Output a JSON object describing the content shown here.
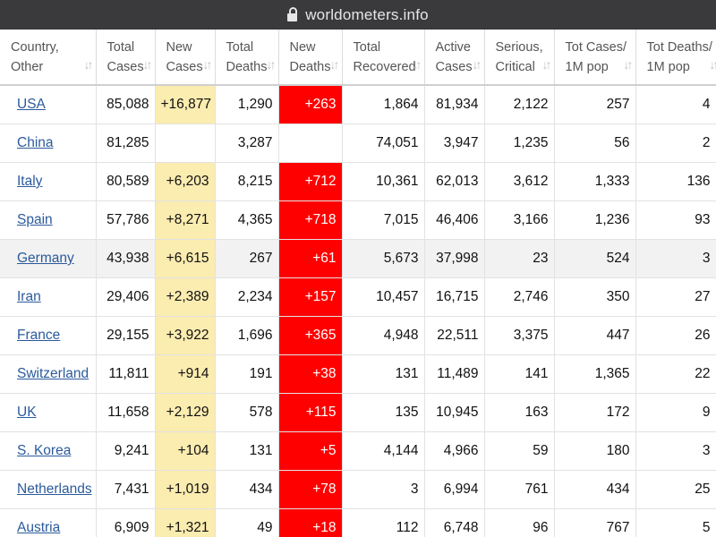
{
  "browser": {
    "url": "worldometers.info"
  },
  "table": {
    "headers": [
      {
        "line1": "Country,",
        "line2": "Other"
      },
      {
        "line1": "Total",
        "line2": "Cases"
      },
      {
        "line1": "New",
        "line2": "Cases"
      },
      {
        "line1": "Total",
        "line2": "Deaths"
      },
      {
        "line1": "New",
        "line2": "Deaths"
      },
      {
        "line1": "Total",
        "line2": "Recovered"
      },
      {
        "line1": "Active",
        "line2": "Cases"
      },
      {
        "line1": "Serious,",
        "line2": "Critical"
      },
      {
        "line1": "Tot Cases/",
        "line2": "1M pop"
      },
      {
        "line1": "Tot Deaths/",
        "line2": "1M pop"
      }
    ],
    "rows": [
      {
        "country": "USA",
        "total_cases": "85,088",
        "new_cases": "+16,877",
        "total_deaths": "1,290",
        "new_deaths": "+263",
        "total_recovered": "1,864",
        "active_cases": "81,934",
        "serious": "2,122",
        "cases_per_1m": "257",
        "deaths_per_1m": "4"
      },
      {
        "country": "China",
        "total_cases": "81,285",
        "new_cases": "",
        "total_deaths": "3,287",
        "new_deaths": "",
        "total_recovered": "74,051",
        "active_cases": "3,947",
        "serious": "1,235",
        "cases_per_1m": "56",
        "deaths_per_1m": "2"
      },
      {
        "country": "Italy",
        "total_cases": "80,589",
        "new_cases": "+6,203",
        "total_deaths": "8,215",
        "new_deaths": "+712",
        "total_recovered": "10,361",
        "active_cases": "62,013",
        "serious": "3,612",
        "cases_per_1m": "1,333",
        "deaths_per_1m": "136"
      },
      {
        "country": "Spain",
        "total_cases": "57,786",
        "new_cases": "+8,271",
        "total_deaths": "4,365",
        "new_deaths": "+718",
        "total_recovered": "7,015",
        "active_cases": "46,406",
        "serious": "3,166",
        "cases_per_1m": "1,236",
        "deaths_per_1m": "93"
      },
      {
        "country": "Germany",
        "total_cases": "43,938",
        "new_cases": "+6,615",
        "total_deaths": "267",
        "new_deaths": "+61",
        "total_recovered": "5,673",
        "active_cases": "37,998",
        "serious": "23",
        "cases_per_1m": "524",
        "deaths_per_1m": "3"
      },
      {
        "country": "Iran",
        "total_cases": "29,406",
        "new_cases": "+2,389",
        "total_deaths": "2,234",
        "new_deaths": "+157",
        "total_recovered": "10,457",
        "active_cases": "16,715",
        "serious": "2,746",
        "cases_per_1m": "350",
        "deaths_per_1m": "27"
      },
      {
        "country": "France",
        "total_cases": "29,155",
        "new_cases": "+3,922",
        "total_deaths": "1,696",
        "new_deaths": "+365",
        "total_recovered": "4,948",
        "active_cases": "22,511",
        "serious": "3,375",
        "cases_per_1m": "447",
        "deaths_per_1m": "26"
      },
      {
        "country": "Switzerland",
        "total_cases": "11,811",
        "new_cases": "+914",
        "total_deaths": "191",
        "new_deaths": "+38",
        "total_recovered": "131",
        "active_cases": "11,489",
        "serious": "141",
        "cases_per_1m": "1,365",
        "deaths_per_1m": "22"
      },
      {
        "country": "UK",
        "total_cases": "11,658",
        "new_cases": "+2,129",
        "total_deaths": "578",
        "new_deaths": "+115",
        "total_recovered": "135",
        "active_cases": "10,945",
        "serious": "163",
        "cases_per_1m": "172",
        "deaths_per_1m": "9"
      },
      {
        "country": "S. Korea",
        "total_cases": "9,241",
        "new_cases": "+104",
        "total_deaths": "131",
        "new_deaths": "+5",
        "total_recovered": "4,144",
        "active_cases": "4,966",
        "serious": "59",
        "cases_per_1m": "180",
        "deaths_per_1m": "3"
      },
      {
        "country": "Netherlands",
        "total_cases": "7,431",
        "new_cases": "+1,019",
        "total_deaths": "434",
        "new_deaths": "+78",
        "total_recovered": "3",
        "active_cases": "6,994",
        "serious": "761",
        "cases_per_1m": "434",
        "deaths_per_1m": "25"
      },
      {
        "country": "Austria",
        "total_cases": "6,909",
        "new_cases": "+1,321",
        "total_deaths": "49",
        "new_deaths": "+18",
        "total_recovered": "112",
        "active_cases": "6,748",
        "serious": "96",
        "cases_per_1m": "767",
        "deaths_per_1m": "5"
      }
    ]
  },
  "colors": {
    "new_cases_highlight": "#fbecb0",
    "new_deaths_highlight": "#ff0000",
    "link": "#2b5a9c",
    "alt_row": "#f2f2f2"
  }
}
